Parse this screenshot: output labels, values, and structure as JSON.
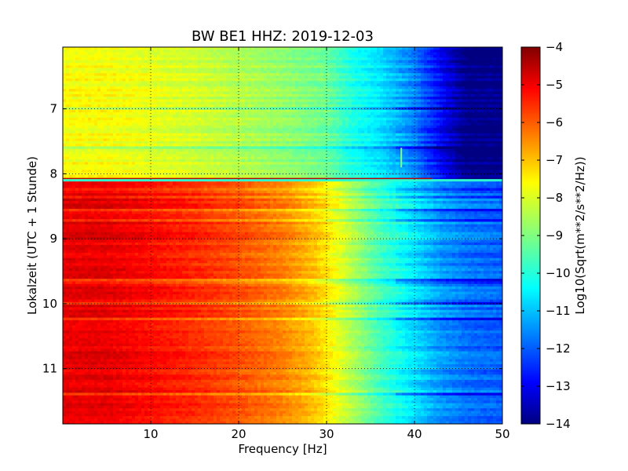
{
  "chart_data": {
    "type": "heatmap",
    "title": "BW BE1 HHZ: 2019-12-03",
    "xlabel": "Frequency [Hz]",
    "ylabel": "Lokalzeit (UTC + 1 Stunde)",
    "xlim": [
      0,
      50
    ],
    "ylim": [
      6.05,
      11.85
    ],
    "y_inverted": true,
    "x_ticks": [
      10,
      20,
      30,
      40,
      50
    ],
    "y_ticks": [
      7,
      8,
      9,
      10,
      11
    ],
    "grid": true,
    "colormap": "jet",
    "colorbar": {
      "label": "Log10(Sqrt(m**2/s**2/Hz))",
      "min": -14,
      "max": -4,
      "ticks": [
        -4,
        -5,
        -6,
        -7,
        -8,
        -9,
        -10,
        -11,
        -12,
        -13,
        -14
      ]
    },
    "frequency_profiles": [
      {
        "time_range": [
          6.05,
          8.1
        ],
        "frequencies": [
          0,
          5,
          10,
          15,
          20,
          25,
          30,
          33,
          36,
          40,
          43,
          46,
          50
        ],
        "values": [
          -7.8,
          -7.8,
          -8.0,
          -8.2,
          -8.5,
          -8.8,
          -9.2,
          -10.0,
          -10.5,
          -11.5,
          -12.8,
          -14,
          -14
        ]
      },
      {
        "time_range": [
          8.1,
          11.85
        ],
        "frequencies": [
          0,
          5,
          10,
          15,
          20,
          25,
          28,
          30,
          33,
          36,
          40,
          43,
          46,
          50
        ],
        "values": [
          -5.0,
          -5.0,
          -5.3,
          -5.6,
          -6.0,
          -6.5,
          -7.0,
          -7.5,
          -8.5,
          -9.5,
          -10.5,
          -11.2,
          -11.6,
          -11.8
        ]
      }
    ],
    "features": [
      {
        "kind": "horizontal_line",
        "time": 8.1,
        "value": -9.8
      },
      {
        "kind": "vertical_line",
        "frequency": 38.5,
        "time_range": [
          7.6,
          7.9
        ],
        "value": -9.0
      }
    ]
  }
}
